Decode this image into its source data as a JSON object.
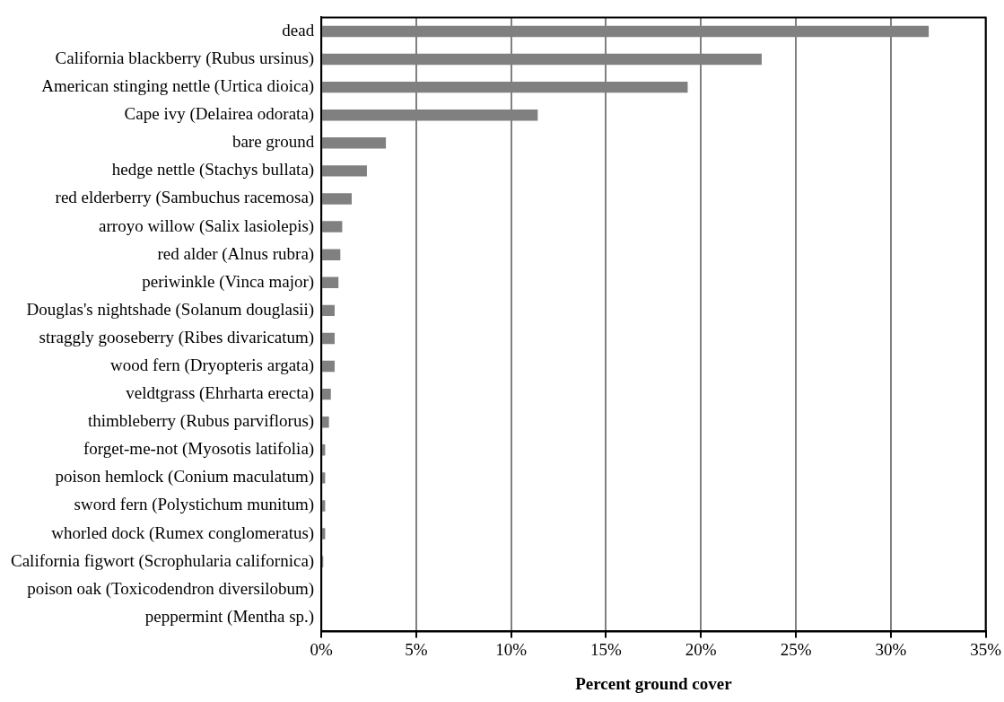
{
  "chart_data": {
    "type": "bar",
    "orientation": "horizontal",
    "xlabel": "Percent ground cover",
    "categories": [
      "dead",
      "California blackberry (Rubus ursinus)",
      "American stinging nettle (Urtica dioica)",
      "Cape ivy (Delairea odorata)",
      "bare ground",
      "hedge nettle (Stachys bullata)",
      "red elderberry (Sambuchus racemosa)",
      "arroyo willow (Salix lasiolepis)",
      "red alder (Alnus rubra)",
      "periwinkle (Vinca major)",
      "Douglas's nightshade (Solanum douglasii)",
      "straggly gooseberry (Ribes divaricatum)",
      "wood fern (Dryopteris argata)",
      "veldtgrass (Ehrharta erecta)",
      "thimbleberry (Rubus parviflorus)",
      "forget-me-not (Myosotis latifolia)",
      "poison hemlock (Conium maculatum)",
      "sword fern (Polystichum munitum)",
      "whorled dock (Rumex conglomeratus)",
      "California figwort (Scrophularia californica)",
      "poison oak (Toxicodendron diversilobum)",
      "peppermint (Mentha sp.)"
    ],
    "values": [
      32.0,
      23.2,
      19.3,
      11.4,
      3.4,
      2.4,
      1.6,
      1.1,
      1.0,
      0.9,
      0.7,
      0.7,
      0.7,
      0.5,
      0.4,
      0.2,
      0.2,
      0.2,
      0.2,
      0.1,
      0,
      0
    ],
    "color": "#808080",
    "xlim": [
      0,
      35
    ],
    "xticks": [
      {
        "value": 0,
        "label": "0%"
      },
      {
        "value": 5,
        "label": "5%"
      },
      {
        "value": 10,
        "label": "10%"
      },
      {
        "value": 15,
        "label": "15%"
      },
      {
        "value": 20,
        "label": "20%"
      },
      {
        "value": 25,
        "label": "25%"
      },
      {
        "value": 30,
        "label": "30%"
      },
      {
        "value": 35,
        "label": "35%"
      }
    ],
    "grid": "x",
    "legend": false
  }
}
